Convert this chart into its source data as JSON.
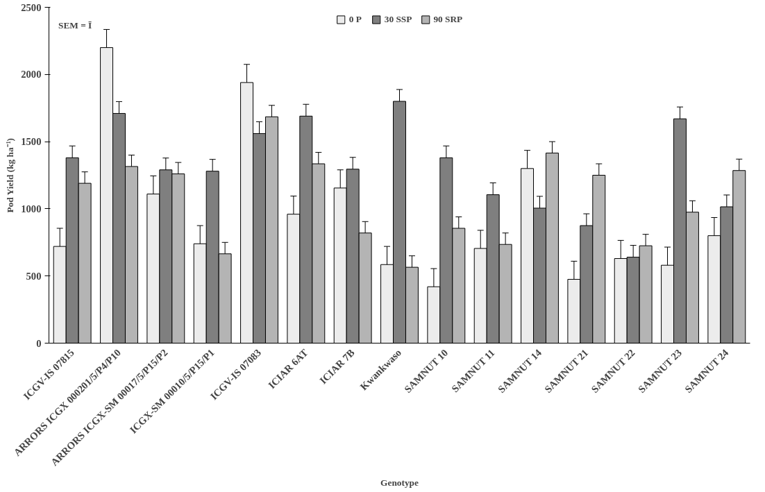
{
  "chart_data": {
    "type": "bar",
    "xlabel": "Genotype",
    "ylabel": "Pod Yield (kg ha⁻¹)",
    "categories": [
      "ICGV-IS 07815",
      "ARRORS ICGX 000201/5/P4/P10",
      "ARRORS ICGX-SM 00017/5/P15/P2",
      "ICGX-SM 00010/5/P15/P1",
      "ICGV-IS 07083",
      "ICIAR 6AT",
      "ICIAR 7B",
      "Kwankwaso",
      "SAMNUT 10",
      "SAMNUT 11",
      "SAMNUT 14",
      "SAMNUT 21",
      "SAMNUT 22",
      "SAMNUT 23",
      "SAMNUT 24"
    ],
    "series": [
      {
        "name": "0 P",
        "color": "#ececec",
        "values": [
          720,
          2200,
          1110,
          740,
          1940,
          960,
          1155,
          585,
          420,
          705,
          1300,
          475,
          630,
          580,
          800
        ],
        "errors": [
          [
            720,
            855
          ],
          [
            2200,
            2335
          ],
          [
            1110,
            1245
          ],
          [
            740,
            875
          ],
          [
            1940,
            2075
          ],
          [
            960,
            1095
          ],
          [
            1155,
            1290
          ],
          [
            585,
            720
          ],
          [
            420,
            555
          ],
          [
            705,
            840
          ],
          [
            1300,
            1435
          ],
          [
            475,
            610
          ],
          [
            630,
            765
          ],
          [
            580,
            715
          ],
          [
            800,
            935
          ]
        ]
      },
      {
        "name": "30 SSP",
        "color": "#7f7f7f",
        "values": [
          1380,
          1710,
          1290,
          1280,
          1560,
          1690,
          1295,
          1800,
          1380,
          1105,
          1005,
          875,
          640,
          1670,
          1015
        ],
        "errors": [
          [
            1380,
            1468
          ],
          [
            1710,
            1798
          ],
          [
            1290,
            1378
          ],
          [
            1280,
            1368
          ],
          [
            1560,
            1648
          ],
          [
            1690,
            1778
          ],
          [
            1295,
            1383
          ],
          [
            1800,
            1888
          ],
          [
            1380,
            1468
          ],
          [
            1105,
            1193
          ],
          [
            1005,
            1093
          ],
          [
            875,
            963
          ],
          [
            640,
            728
          ],
          [
            1670,
            1758
          ],
          [
            1015,
            1103
          ]
        ]
      },
      {
        "name": "90 SRP",
        "color": "#b4b4b4",
        "values": [
          1190,
          1315,
          1260,
          665,
          1685,
          1335,
          820,
          565,
          855,
          735,
          1415,
          1250,
          725,
          975,
          1285
        ],
        "errors": [
          [
            1190,
            1275
          ],
          [
            1315,
            1400
          ],
          [
            1260,
            1345
          ],
          [
            665,
            750
          ],
          [
            1685,
            1770
          ],
          [
            1335,
            1420
          ],
          [
            820,
            905
          ],
          [
            565,
            650
          ],
          [
            855,
            940
          ],
          [
            735,
            820
          ],
          [
            1415,
            1500
          ],
          [
            1250,
            1335
          ],
          [
            725,
            810
          ],
          [
            975,
            1060
          ],
          [
            1285,
            1370
          ]
        ]
      }
    ],
    "ylim": [
      0,
      2500
    ],
    "yticks": [
      0,
      500,
      1000,
      1500,
      2000,
      2500
    ],
    "annotations": [
      "SEM = Ī"
    ],
    "legend": "top",
    "grid": false
  }
}
